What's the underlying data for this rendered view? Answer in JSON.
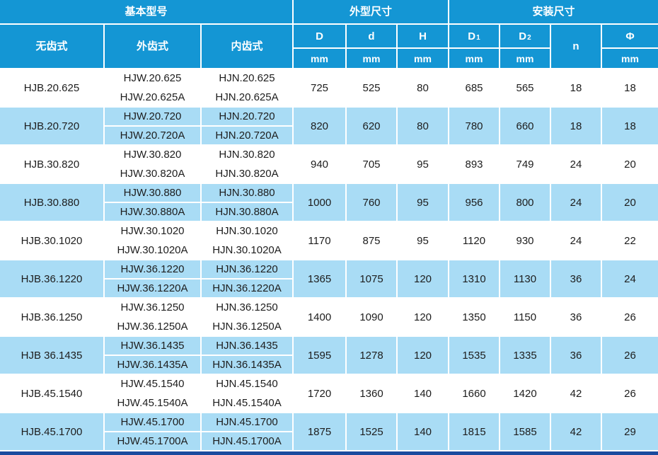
{
  "table": {
    "group_headers": {
      "basic_model": "基本型号",
      "outer_dim": "外型尺寸",
      "install_dim": "安装尺寸"
    },
    "model_cols": {
      "toothless": "无齿式",
      "external_gear": "外齿式",
      "internal_gear": "内齿式"
    },
    "dim_cols": [
      {
        "label": "D",
        "unit": "mm"
      },
      {
        "label": "d",
        "unit": "mm"
      },
      {
        "label": "H",
        "unit": "mm"
      },
      {
        "label": "D",
        "sub": "1",
        "unit": "mm"
      },
      {
        "label": "D",
        "sub": "2",
        "unit": "mm"
      },
      {
        "label": "n"
      },
      {
        "label": "Φ",
        "unit": "mm"
      }
    ],
    "rows": [
      {
        "hjb": "HJB.20.625",
        "hjw": [
          "HJW.20.625",
          "HJW.20.625A"
        ],
        "hjn": [
          "HJN.20.625",
          "HJN.20.625A"
        ],
        "D": "725",
        "d": "525",
        "H": "80",
        "D1": "685",
        "D2": "565",
        "n": "18",
        "phi": "18"
      },
      {
        "hjb": "HJB.20.720",
        "hjw": [
          "HJW.20.720",
          "HJW.20.720A"
        ],
        "hjn": [
          "HJN.20.720",
          "HJN.20.720A"
        ],
        "D": "820",
        "d": "620",
        "H": "80",
        "D1": "780",
        "D2": "660",
        "n": "18",
        "phi": "18"
      },
      {
        "hjb": "HJB.30.820",
        "hjw": [
          "HJW.30.820",
          "HJW.30.820A"
        ],
        "hjn": [
          "HJN.30.820",
          "HJN.30.820A"
        ],
        "D": "940",
        "d": "705",
        "H": "95",
        "D1": "893",
        "D2": "749",
        "n": "24",
        "phi": "20"
      },
      {
        "hjb": "HJB.30.880",
        "hjw": [
          "HJW.30.880",
          "HJW.30.880A"
        ],
        "hjn": [
          "HJN.30.880",
          "HJN.30.880A"
        ],
        "D": "1000",
        "d": "760",
        "H": "95",
        "D1": "956",
        "D2": "800",
        "n": "24",
        "phi": "20"
      },
      {
        "hjb": "HJB.30.1020",
        "hjw": [
          "HJW.30.1020",
          "HJW.30.1020A"
        ],
        "hjn": [
          "HJN.30.1020",
          "HJN.30.1020A"
        ],
        "D": "1170",
        "d": "875",
        "H": "95",
        "D1": "1120",
        "D2": "930",
        "n": "24",
        "phi": "22"
      },
      {
        "hjb": "HJB.36.1220",
        "hjw": [
          "HJW.36.1220",
          "HJW.36.1220A"
        ],
        "hjn": [
          "HJN.36.1220",
          "HJN.36.1220A"
        ],
        "D": "1365",
        "d": "1075",
        "H": "120",
        "D1": "1310",
        "D2": "1130",
        "n": "36",
        "phi": "24"
      },
      {
        "hjb": "HJB.36.1250",
        "hjw": [
          "HJW.36.1250",
          "HJW.36.1250A"
        ],
        "hjn": [
          "HJN.36.1250",
          "HJN.36.1250A"
        ],
        "D": "1400",
        "d": "1090",
        "H": "120",
        "D1": "1350",
        "D2": "1150",
        "n": "36",
        "phi": "26"
      },
      {
        "hjb": "HJB 36.1435",
        "hjw": [
          "HJW.36.1435",
          "HJW.36.1435A"
        ],
        "hjn": [
          "HJN.36.1435",
          "HJN.36.1435A"
        ],
        "D": "1595",
        "d": "1278",
        "H": "120",
        "D1": "1535",
        "D2": "1335",
        "n": "36",
        "phi": "26"
      },
      {
        "hjb": "HJB.45.1540",
        "hjw": [
          "HJW.45.1540",
          "HJW.45.1540A"
        ],
        "hjn": [
          "HJN.45.1540",
          "HJN.45.1540A"
        ],
        "D": "1720",
        "d": "1360",
        "H": "140",
        "D1": "1660",
        "D2": "1420",
        "n": "42",
        "phi": "26"
      },
      {
        "hjb": "HJB.45.1700",
        "hjw": [
          "HJW.45.1700",
          "HJW.45.1700A"
        ],
        "hjn": [
          "HJN.45.1700",
          "HJN.45.1700A"
        ],
        "D": "1875",
        "d": "1525",
        "H": "140",
        "D1": "1815",
        "D2": "1585",
        "n": "42",
        "phi": "29"
      }
    ],
    "colors": {
      "header": "#1496d4",
      "row_alt": "#a9dcf5",
      "footer_bar": "#1a4a9e"
    }
  }
}
